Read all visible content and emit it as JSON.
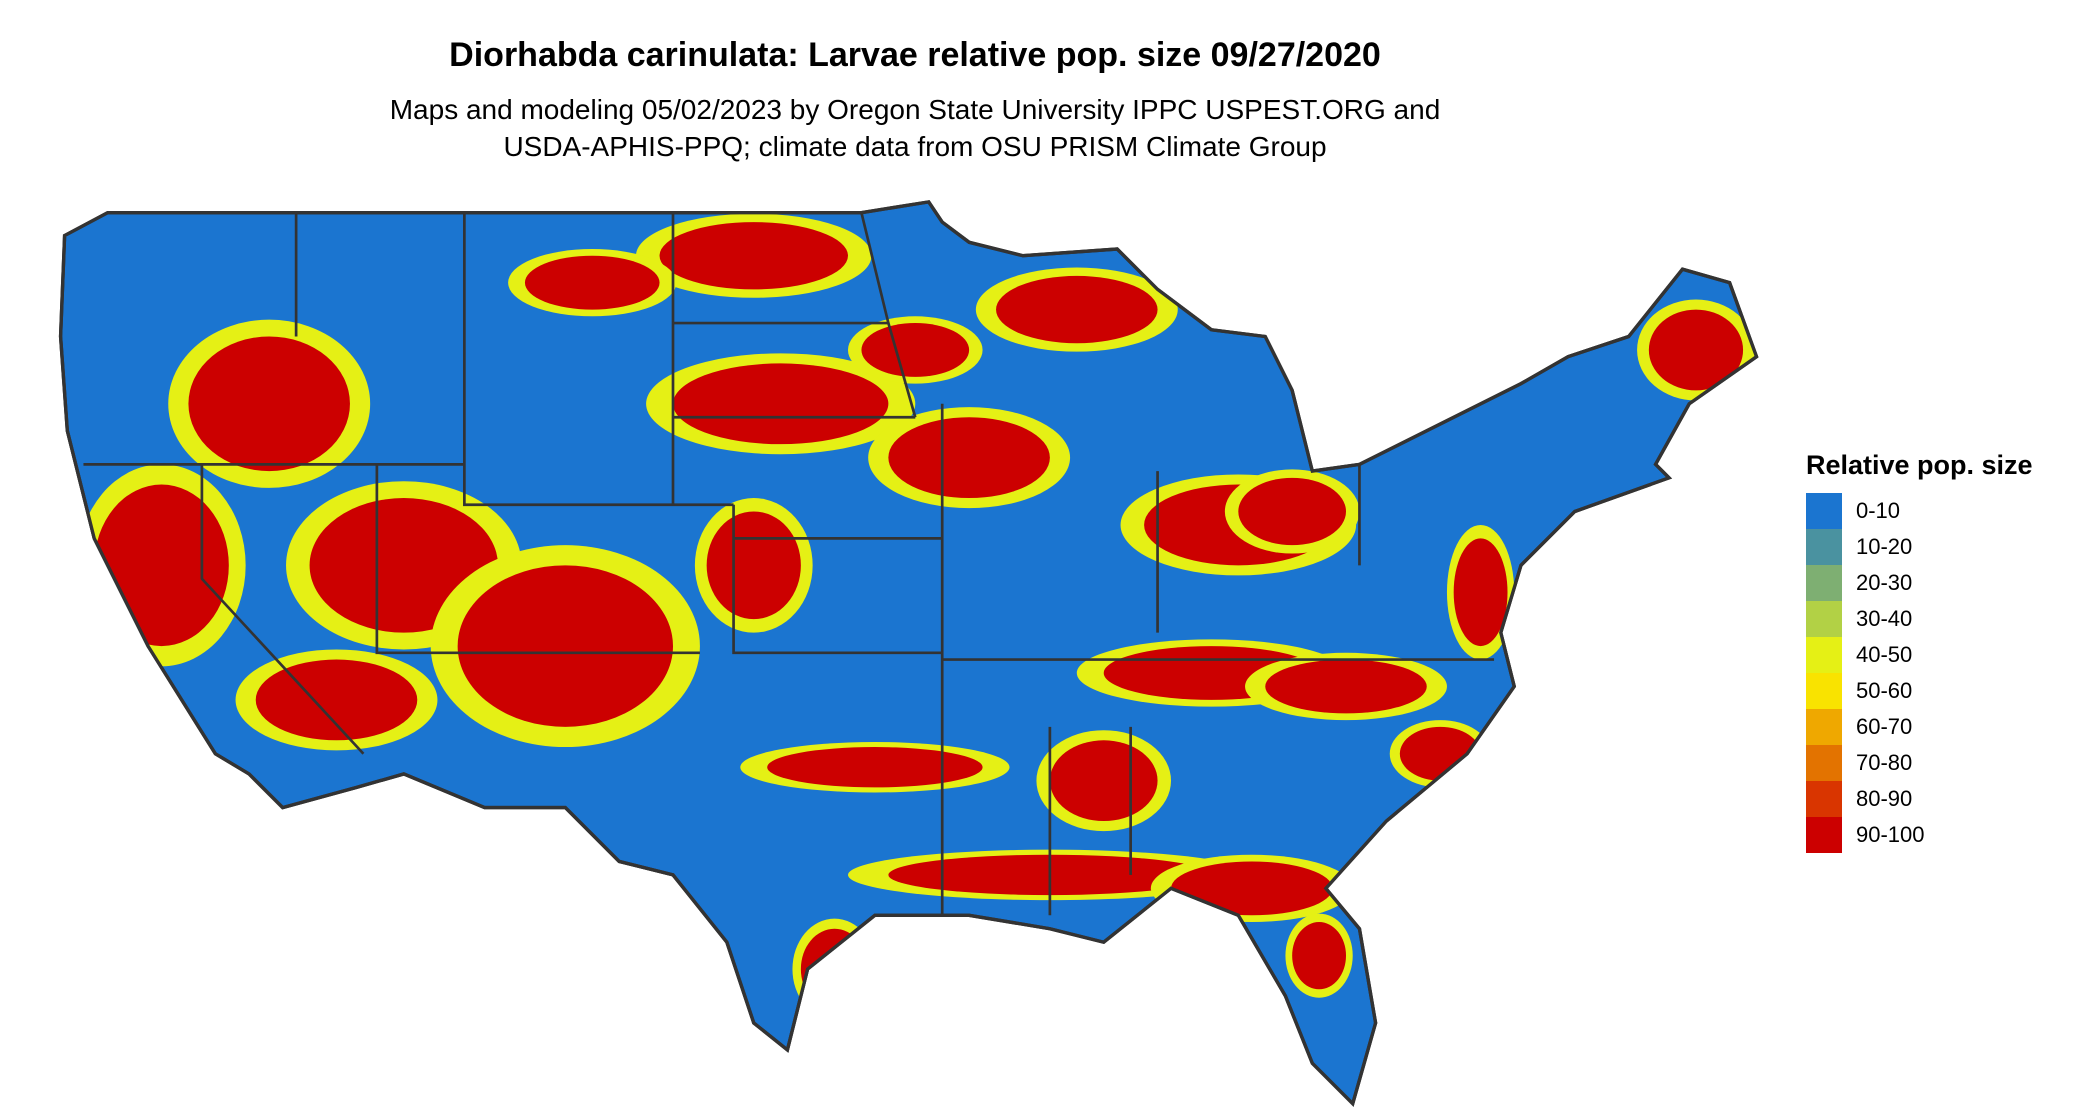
{
  "title": "Diorhabda carinulata: Larvae relative pop. size 09/27/2020",
  "subtitle_line1": "Maps and modeling 05/02/2023 by Oregon State University IPPC USPEST.ORG and",
  "subtitle_line2": "USDA-APHIS-PPQ; climate data from OSU PRISM Climate Group",
  "legend": {
    "title": "Relative pop. size",
    "items": [
      {
        "label": "0-10",
        "color": "#1b75d0"
      },
      {
        "label": "10-20",
        "color": "#4a92a0"
      },
      {
        "label": "20-30",
        "color": "#7eaf72"
      },
      {
        "label": "30-40",
        "color": "#b2d145"
      },
      {
        "label": "40-50",
        "color": "#e5f015"
      },
      {
        "label": "50-60",
        "color": "#f9e300"
      },
      {
        "label": "60-70",
        "color": "#efa800"
      },
      {
        "label": "70-80",
        "color": "#e37300"
      },
      {
        "label": "80-90",
        "color": "#d93500"
      },
      {
        "label": "90-100",
        "color": "#cc0000"
      }
    ]
  },
  "map": {
    "region": "Contiguous United States",
    "border_color": "#333333"
  }
}
